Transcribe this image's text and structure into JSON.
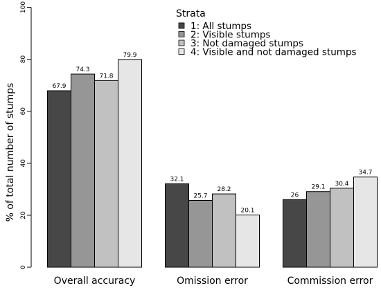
{
  "chart_data": {
    "type": "bar",
    "title": "",
    "xlabel": "",
    "ylabel": "% of total number of stumps",
    "ylim": [
      0,
      100
    ],
    "yticks": [
      0,
      20,
      40,
      60,
      80,
      100
    ],
    "grid": false,
    "legend_title": "Strata",
    "legend_position": "top-right",
    "categories": [
      "Overall accuracy",
      "Omission error",
      "Commission error"
    ],
    "series": [
      {
        "name": "1: All stumps",
        "color": "#474747",
        "values": [
          67.9,
          32.1,
          26
        ],
        "labels": [
          "67.9",
          "32.1",
          "26"
        ]
      },
      {
        "name": "2: Visible stumps",
        "color": "#969696",
        "values": [
          74.3,
          25.7,
          29.1
        ],
        "labels": [
          "74.3",
          "25.7",
          "29.1"
        ]
      },
      {
        "name": "3: Not damaged stumps",
        "color": "#c1c1c1",
        "values": [
          71.8,
          28.2,
          30.4
        ],
        "labels": [
          "71.8",
          "28.2",
          "30.4"
        ]
      },
      {
        "name": "4: Visible and not damaged stumps",
        "color": "#e6e6e6",
        "values": [
          79.9,
          20.1,
          34.7
        ],
        "labels": [
          "79.9",
          "20.1",
          "34.7"
        ]
      }
    ]
  }
}
